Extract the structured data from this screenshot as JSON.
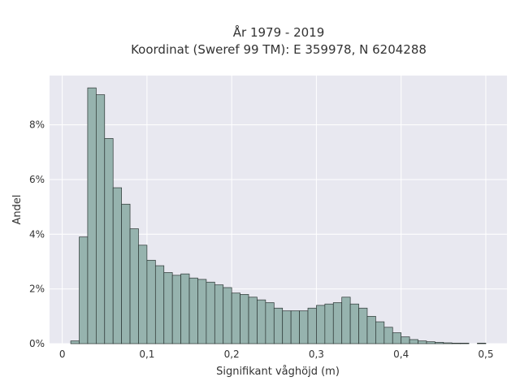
{
  "chart_data": {
    "type": "bar",
    "title": "År 1979 - 2019",
    "subtitle": "Koordinat (Sweref 99 TM): E 359978, N 6204288",
    "xlabel": "Signifikant våghöjd (m)",
    "ylabel": "Andel",
    "xlim": [
      -0.015,
      0.525
    ],
    "ylim": [
      0,
      9.8
    ],
    "x_ticks": [
      0,
      0.1,
      0.2,
      0.3,
      0.4,
      0.5
    ],
    "x_tick_labels": [
      "0",
      "0,1",
      "0,2",
      "0,3",
      "0,4",
      "0,5"
    ],
    "y_ticks": [
      0,
      2,
      4,
      6,
      8
    ],
    "y_tick_labels": [
      "0%",
      "2%",
      "4%",
      "6%",
      "8%"
    ],
    "bin_width": 0.01,
    "bins_start": [
      0.01,
      0.02,
      0.03,
      0.04,
      0.05,
      0.06,
      0.07,
      0.08,
      0.09,
      0.1,
      0.11,
      0.12,
      0.13,
      0.14,
      0.15,
      0.16,
      0.17,
      0.18,
      0.19,
      0.2,
      0.21,
      0.22,
      0.23,
      0.24,
      0.25,
      0.26,
      0.27,
      0.28,
      0.29,
      0.3,
      0.31,
      0.32,
      0.33,
      0.34,
      0.35,
      0.36,
      0.37,
      0.38,
      0.39,
      0.4,
      0.41,
      0.42,
      0.43,
      0.44,
      0.45,
      0.46,
      0.47,
      0.48,
      0.49
    ],
    "values": [
      0.1,
      3.9,
      9.35,
      9.1,
      7.5,
      5.7,
      5.1,
      4.2,
      3.6,
      3.05,
      2.85,
      2.6,
      2.5,
      2.55,
      2.4,
      2.35,
      2.25,
      2.15,
      2.05,
      1.85,
      1.8,
      1.7,
      1.6,
      1.5,
      1.3,
      1.2,
      1.2,
      1.2,
      1.3,
      1.4,
      1.45,
      1.5,
      1.7,
      1.45,
      1.3,
      1.0,
      0.8,
      0.6,
      0.4,
      0.25,
      0.15,
      0.1,
      0.07,
      0.05,
      0.03,
      0.02,
      0.02,
      0.0,
      0.02
    ],
    "colors": {
      "bar_fill": "#96b3ae",
      "bar_edge": "#2b3533",
      "plot_bg": "#e8e8f0",
      "grid": "#ffffff"
    },
    "grid": true,
    "legend": "none"
  }
}
